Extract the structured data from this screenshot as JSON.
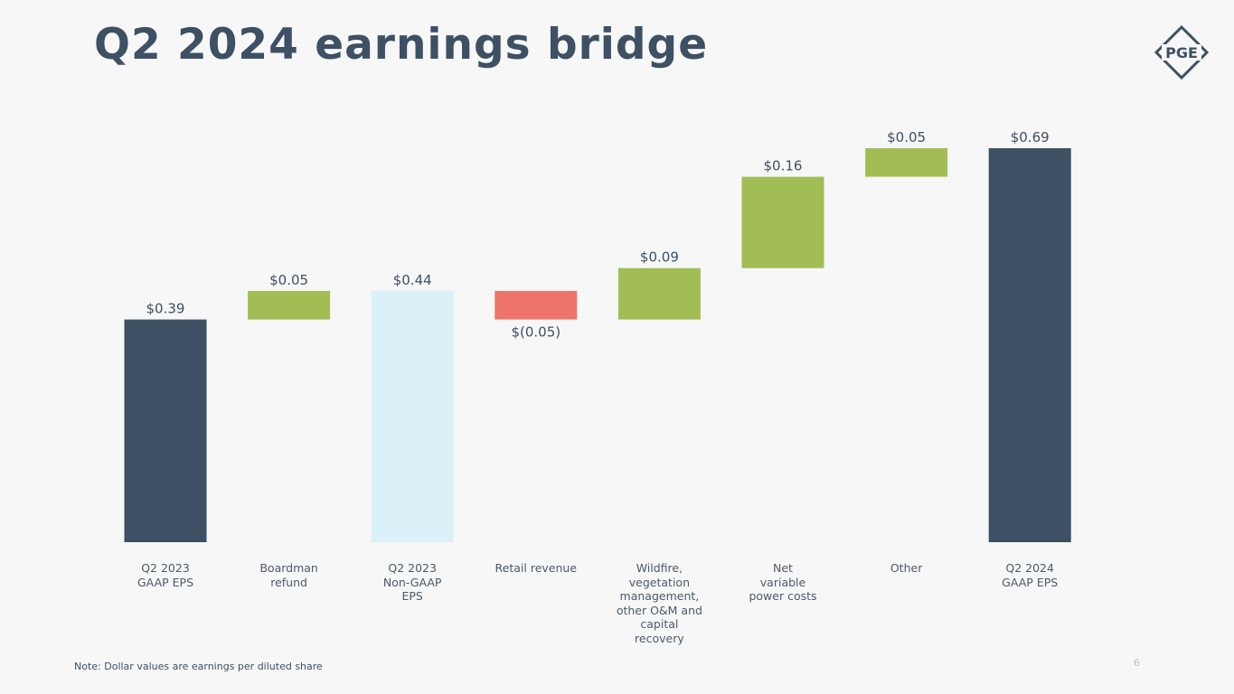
{
  "title": "Q2 2024 earnings bridge",
  "logo": "PGE",
  "note": "Note: Dollar values are earnings per diluted share",
  "page_number": "6",
  "chart_data": {
    "type": "waterfall",
    "categories": [
      "Q2 2023 GAAP EPS",
      "Boardman refund",
      "Q2 2023 Non-GAAP EPS",
      "Retail revenue",
      "Wildfire, vegetation management, other O&M and capital recovery",
      "Net variable power costs",
      "Other",
      "Q2 2024 GAAP EPS"
    ],
    "values": [
      0.39,
      0.05,
      0.44,
      -0.05,
      0.09,
      0.16,
      0.05,
      0.69
    ],
    "value_labels": [
      "$0.39",
      "$0.05",
      "$0.44",
      "$(0.05)",
      "$0.09",
      "$0.16",
      "$0.05",
      "$0.69"
    ],
    "measure": [
      "absolute",
      "relative",
      "absolute",
      "relative",
      "relative",
      "relative",
      "relative",
      "absolute"
    ],
    "colors": [
      "#3d5064",
      "#a3bd55",
      "#d9f1f7",
      "#ec746b",
      "#a3bd55",
      "#a3bd55",
      "#a3bd55",
      "#3d5064"
    ]
  }
}
